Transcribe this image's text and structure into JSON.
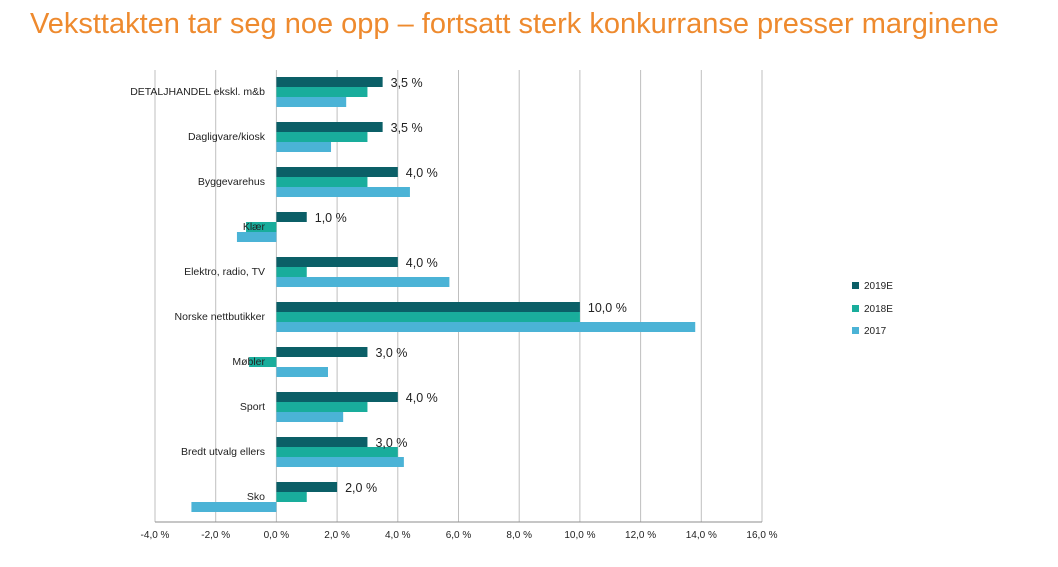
{
  "page": {
    "title": "Veksttakten tar seg noe opp – fortsatt sterk konkurranse presser marginene"
  },
  "colors": {
    "title": "#ee8a2e",
    "grid": "#bfbfbf",
    "axis": "#8c8c8c"
  },
  "chart_data": {
    "type": "bar",
    "orientation": "horizontal",
    "categories": [
      "DETALJHANDEL ekskl. m&b",
      "Dagligvare/kiosk",
      "Byggevarehus",
      "Klær",
      "Elektro, radio, TV",
      "Norske nettbutikker",
      "Møbler",
      "Sport",
      "Bredt utvalg ellers",
      "Sko"
    ],
    "series": [
      {
        "name": "2019E",
        "color": "#0b5f67",
        "values": [
          3.5,
          3.5,
          4.0,
          1.0,
          4.0,
          10.0,
          3.0,
          4.0,
          3.0,
          2.0
        ]
      },
      {
        "name": "2018E",
        "color": "#19ad9c",
        "values": [
          3.0,
          3.0,
          3.0,
          -1.0,
          1.0,
          10.0,
          -0.9,
          3.0,
          4.0,
          1.0
        ]
      },
      {
        "name": "2017",
        "color": "#4bb3d6",
        "values": [
          2.3,
          1.8,
          4.4,
          -1.3,
          5.7,
          13.8,
          1.7,
          2.2,
          4.2,
          -2.8
        ]
      }
    ],
    "data_labels": [
      "3,5 %",
      "3,5 %",
      "4,0 %",
      "1,0 %",
      "4,0 %",
      "10,0 %",
      "3,0 %",
      "4,0 %",
      "3,0 %",
      "2,0 %"
    ],
    "xlim": [
      -4,
      16
    ],
    "x_ticks": [
      -4,
      -2,
      0,
      2,
      4,
      6,
      8,
      10,
      12,
      14,
      16
    ],
    "x_tick_labels": [
      "-4,0 %",
      "-2,0 %",
      "0,0 %",
      "2,0 %",
      "4,0 %",
      "6,0 %",
      "8,0 %",
      "10,0 %",
      "12,0 %",
      "14,0 %",
      "16,0 %"
    ],
    "grid": true,
    "legend_position": "right",
    "legend": [
      "2019E",
      "2018E",
      "2017"
    ]
  }
}
